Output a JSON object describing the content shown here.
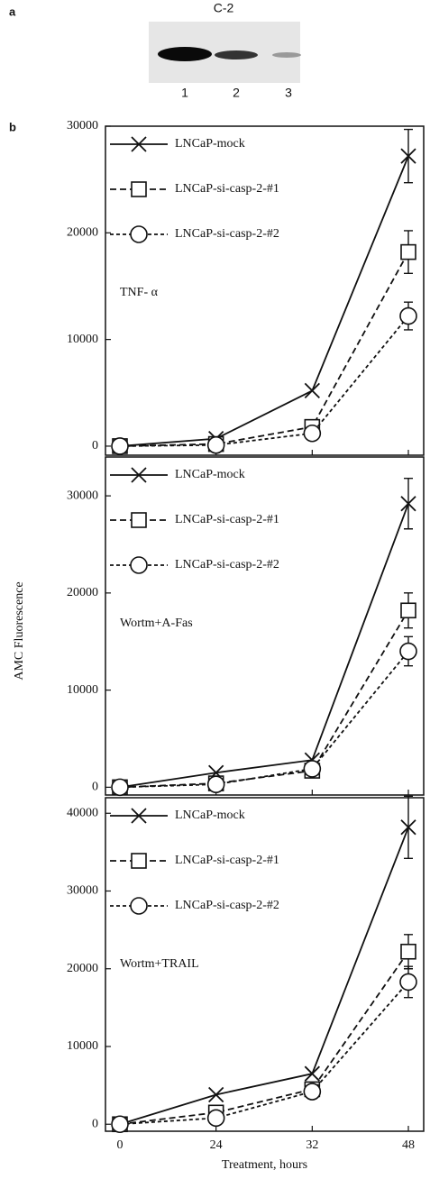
{
  "figure": {
    "panel_a": "a",
    "blot_label": "C-2",
    "lanes": [
      "1",
      "2",
      "3"
    ],
    "panel_b": "b",
    "y_label": "AMC Fluorescence"
  },
  "chart_data": [
    {
      "type": "line",
      "annotation": "TNF- α",
      "ylim": [
        -850,
        30000
      ],
      "yticks": [
        0,
        10000,
        20000,
        30000
      ],
      "series": [
        {
          "name": "LNCaP-mock",
          "color": "#111111",
          "dash": "solid",
          "marker": "x",
          "values": [
            0,
            700,
            5200,
            27200
          ],
          "errors": [
            null,
            null,
            null,
            2500
          ]
        },
        {
          "name": "LNCaP-si-casp-2-#1",
          "color": "#111111",
          "dash": "dashed",
          "marker": "square",
          "values": [
            0,
            200,
            1800,
            18200
          ],
          "errors": [
            null,
            null,
            null,
            2000
          ]
        },
        {
          "name": "LNCaP-si-casp-2-#2",
          "color": "#111111",
          "dash": "dotted",
          "marker": "circle",
          "values": [
            0,
            100,
            1200,
            12200
          ],
          "errors": [
            null,
            null,
            null,
            1300
          ]
        }
      ]
    },
    {
      "type": "line",
      "annotation": "Wortm+A-Fas",
      "ylim": [
        -800,
        34000
      ],
      "yticks": [
        0,
        10000,
        20000,
        30000
      ],
      "series": [
        {
          "name": "LNCaP-mock",
          "color": "#111111",
          "dash": "solid",
          "marker": "x",
          "values": [
            0,
            1500,
            2800,
            29200
          ],
          "errors": [
            null,
            null,
            null,
            2600
          ]
        },
        {
          "name": "LNCaP-si-casp-2-#1",
          "color": "#111111",
          "dash": "dashed",
          "marker": "square",
          "values": [
            0,
            400,
            1700,
            18200
          ],
          "errors": [
            null,
            null,
            null,
            1800
          ]
        },
        {
          "name": "LNCaP-si-casp-2-#2",
          "color": "#111111",
          "dash": "dotted",
          "marker": "circle",
          "values": [
            0,
            300,
            1900,
            14000
          ],
          "errors": [
            null,
            null,
            null,
            1500
          ]
        }
      ]
    },
    {
      "type": "line",
      "annotation": "Wortm+TRAIL",
      "ylim": [
        -900,
        42000
      ],
      "yticks": [
        0,
        10000,
        20000,
        30000,
        40000
      ],
      "categories": [
        "0",
        "24",
        "32",
        "48"
      ],
      "x_label": "Treatment, hours",
      "series": [
        {
          "name": "LNCaP-mock",
          "color": "#111111",
          "dash": "solid",
          "marker": "x",
          "values": [
            0,
            3800,
            6500,
            38200
          ],
          "errors": [
            null,
            null,
            null,
            4000
          ]
        },
        {
          "name": "LNCaP-si-casp-2-#1",
          "color": "#111111",
          "dash": "dashed",
          "marker": "square",
          "values": [
            0,
            1500,
            4500,
            22200
          ],
          "errors": [
            null,
            null,
            null,
            2200
          ]
        },
        {
          "name": "LNCaP-si-casp-2-#2",
          "color": "#111111",
          "dash": "dotted",
          "marker": "circle",
          "values": [
            0,
            800,
            4200,
            18300
          ],
          "errors": [
            null,
            null,
            null,
            2000
          ]
        }
      ]
    }
  ]
}
